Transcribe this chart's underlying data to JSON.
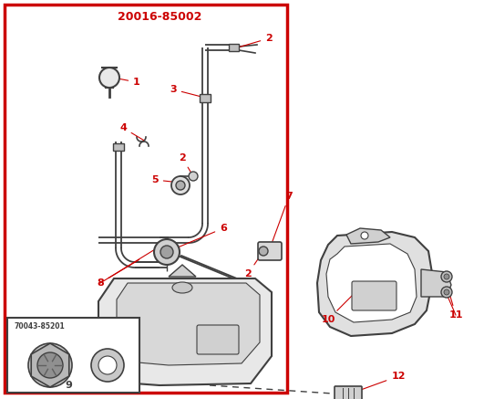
{
  "title": "20016-85002",
  "title_color": "#cc0000",
  "bg_color": "#ffffff",
  "border_color": "#cc0000",
  "border_lw": 2.5,
  "label_color": "#cc0000",
  "line_color": "#404040",
  "inset_label": "70043-85201"
}
